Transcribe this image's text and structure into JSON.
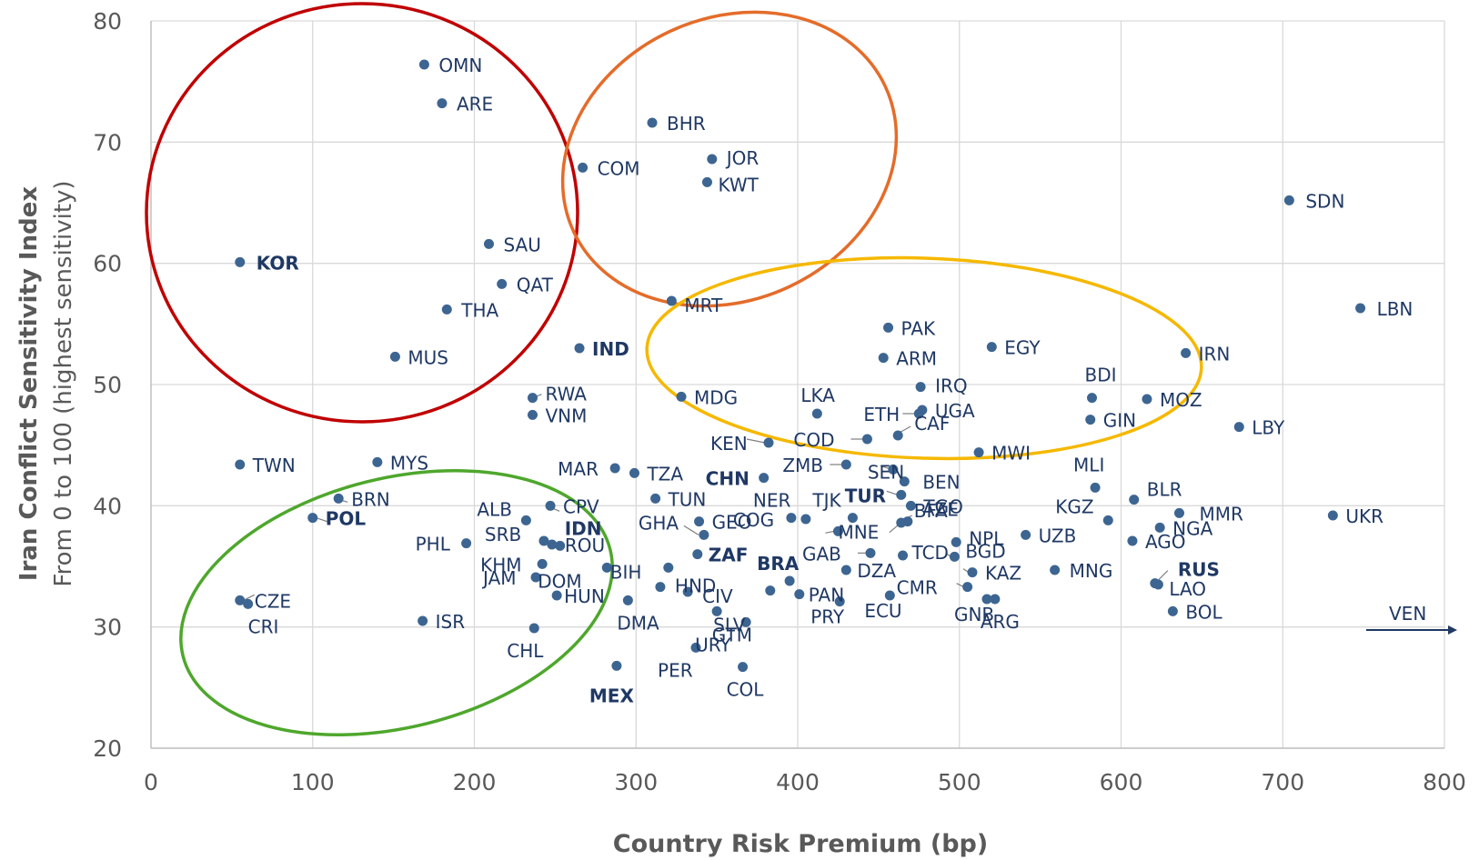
{
  "chart_data": {
    "type": "scatter",
    "title": "",
    "xlabel": "Country Risk Premium (bp)",
    "ylabel": "Iran Conflict Sensitivity Index",
    "ylabel_sub": "From 0 to 100 (highest sensitivity)",
    "xlim": [
      0,
      800
    ],
    "ylim": [
      20,
      80
    ],
    "xticks": [
      0,
      100,
      200,
      300,
      400,
      500,
      600,
      700,
      800
    ],
    "yticks": [
      20,
      30,
      40,
      50,
      60,
      70,
      80
    ],
    "grid": true,
    "marker_color": "#3d6591",
    "label_color": "#1f3864",
    "points": [
      {
        "name": "OMN",
        "x": 169,
        "y": 76.4
      },
      {
        "name": "ARE",
        "x": 180,
        "y": 73.2
      },
      {
        "name": "BHR",
        "x": 310,
        "y": 71.6
      },
      {
        "name": "JOR",
        "x": 347,
        "y": 68.6
      },
      {
        "name": "COM",
        "x": 267,
        "y": 67.9
      },
      {
        "name": "KWT",
        "x": 344,
        "y": 66.7
      },
      {
        "name": "SDN",
        "x": 704,
        "y": 65.2
      },
      {
        "name": "SAU",
        "x": 209,
        "y": 61.6
      },
      {
        "name": "KOR",
        "x": 55,
        "y": 60.1,
        "bold": true
      },
      {
        "name": "QAT",
        "x": 217,
        "y": 58.3
      },
      {
        "name": "MRT",
        "x": 322,
        "y": 56.9
      },
      {
        "name": "LBN",
        "x": 748,
        "y": 56.3
      },
      {
        "name": "THA",
        "x": 183,
        "y": 56.2
      },
      {
        "name": "PAK",
        "x": 456,
        "y": 54.7
      },
      {
        "name": "EGY",
        "x": 520,
        "y": 53.1
      },
      {
        "name": "IND",
        "x": 265,
        "y": 53.0,
        "bold": true
      },
      {
        "name": "IRN",
        "x": 640,
        "y": 52.6
      },
      {
        "name": "MUS",
        "x": 151,
        "y": 52.3
      },
      {
        "name": "ARM",
        "x": 453,
        "y": 52.2
      },
      {
        "name": "IRQ",
        "x": 476,
        "y": 49.8
      },
      {
        "name": "MDG",
        "x": 328,
        "y": 49.0
      },
      {
        "name": "BDI",
        "x": 582,
        "y": 48.9
      },
      {
        "name": "RWA",
        "x": 236,
        "y": 48.9
      },
      {
        "name": "MOZ",
        "x": 616,
        "y": 48.8
      },
      {
        "name": "UGA",
        "x": 477,
        "y": 47.9
      },
      {
        "name": "LKA",
        "x": 412,
        "y": 47.6
      },
      {
        "name": "ETH",
        "x": 475,
        "y": 47.6
      },
      {
        "name": "VNM",
        "x": 236,
        "y": 47.5
      },
      {
        "name": "GIN",
        "x": 581,
        "y": 47.1
      },
      {
        "name": "LBY",
        "x": 673,
        "y": 46.5
      },
      {
        "name": "CAF",
        "x": 462,
        "y": 45.8
      },
      {
        "name": "COD",
        "x": 443,
        "y": 45.5
      },
      {
        "name": "KEN",
        "x": 382,
        "y": 45.2
      },
      {
        "name": "MWI",
        "x": 512,
        "y": 44.4
      },
      {
        "name": "TWN",
        "x": 55,
        "y": 43.4
      },
      {
        "name": "MYS",
        "x": 140,
        "y": 43.6
      },
      {
        "name": "ZMB",
        "x": 430,
        "y": 43.4
      },
      {
        "name": "MAR",
        "x": 287,
        "y": 43.1
      },
      {
        "name": "TZA",
        "x": 299,
        "y": 42.7
      },
      {
        "name": "CHN",
        "x": 379,
        "y": 42.3,
        "bold": true
      },
      {
        "name": "SEN",
        "x": 459,
        "y": 43.0
      },
      {
        "name": "BEN",
        "x": 466,
        "y": 42.0
      },
      {
        "name": "MLI",
        "x": 584,
        "y": 41.5
      },
      {
        "name": "TUR",
        "x": 464,
        "y": 40.9,
        "bold": true
      },
      {
        "name": "BRN",
        "x": 116,
        "y": 40.6
      },
      {
        "name": "TUN",
        "x": 312,
        "y": 40.6
      },
      {
        "name": "BLR",
        "x": 608,
        "y": 40.5
      },
      {
        "name": "TGO",
        "x": 470,
        "y": 40.0
      },
      {
        "name": "NER",
        "x": 396,
        "y": 39.0
      },
      {
        "name": "TJK",
        "x": 434,
        "y": 39.0
      },
      {
        "name": "CPV",
        "x": 247,
        "y": 40.0
      },
      {
        "name": "MMR",
        "x": 636,
        "y": 39.4
      },
      {
        "name": "UKR",
        "x": 731,
        "y": 39.2
      },
      {
        "name": "POL",
        "x": 100,
        "y": 39.0,
        "bold": true
      },
      {
        "name": "ALB",
        "x": 232,
        "y": 38.8
      },
      {
        "name": "GEO",
        "x": 339,
        "y": 38.7
      },
      {
        "name": "KGZ",
        "x": 592,
        "y": 38.8
      },
      {
        "name": "AZE",
        "x": 468,
        "y": 38.7
      },
      {
        "name": "BFA",
        "x": 464,
        "y": 38.6
      },
      {
        "name": "NGA",
        "x": 624,
        "y": 38.2
      },
      {
        "name": "GHA",
        "x": 342,
        "y": 37.6
      },
      {
        "name": "COG",
        "x": 405,
        "y": 38.9
      },
      {
        "name": "MNE",
        "x": 425,
        "y": 37.9
      },
      {
        "name": "UZB",
        "x": 541,
        "y": 37.6
      },
      {
        "name": "NPL",
        "x": 498,
        "y": 37.0
      },
      {
        "name": "PHL",
        "x": 195,
        "y": 36.9
      },
      {
        "name": "SRB",
        "x": 243,
        "y": 37.1
      },
      {
        "name": "IDN",
        "x": 253,
        "y": 36.7,
        "bold": true
      },
      {
        "name": "ROU",
        "x": 248,
        "y": 36.8
      },
      {
        "name": "AGO",
        "x": 607,
        "y": 37.1
      },
      {
        "name": "TCD",
        "x": 465,
        "y": 35.9
      },
      {
        "name": "BIH",
        "x": 320,
        "y": 34.9
      },
      {
        "name": "ZAF",
        "x": 338,
        "y": 36.0,
        "bold": true
      },
      {
        "name": "GAB",
        "x": 445,
        "y": 36.1
      },
      {
        "name": "BGD",
        "x": 497,
        "y": 35.8
      },
      {
        "name": "KHM",
        "x": 242,
        "y": 35.2
      },
      {
        "name": "DZA",
        "x": 430,
        "y": 34.7
      },
      {
        "name": "MNG",
        "x": 559,
        "y": 34.7
      },
      {
        "name": "RUS",
        "x": 621,
        "y": 33.6,
        "bold": true
      },
      {
        "name": "BRA",
        "x": 395,
        "y": 33.8,
        "bold": true
      },
      {
        "name": "KAZ",
        "x": 508,
        "y": 34.5
      },
      {
        "name": "JAM",
        "x": 238,
        "y": 34.1
      },
      {
        "name": "HND",
        "x": 315,
        "y": 33.3
      },
      {
        "name": "PAN",
        "x": 401,
        "y": 32.7
      },
      {
        "name": "CMR",
        "x": 505,
        "y": 33.3
      },
      {
        "name": "CZE",
        "x": 55,
        "y": 32.2
      },
      {
        "name": "LAO",
        "x": 623,
        "y": 33.5
      },
      {
        "name": "HUN",
        "x": 251,
        "y": 32.6
      },
      {
        "name": "CIV",
        "x": 332,
        "y": 32.9
      },
      {
        "name": "DMA",
        "x": 295,
        "y": 32.2
      },
      {
        "name": "PRY",
        "x": 426,
        "y": 32.1
      },
      {
        "name": "ECU",
        "x": 457,
        "y": 32.6
      },
      {
        "name": "GNB",
        "x": 517,
        "y": 32.3
      },
      {
        "name": "ARG",
        "x": 522,
        "y": 32.3
      },
      {
        "name": "CRI",
        "x": 60,
        "y": 31.9
      },
      {
        "name": "BOL",
        "x": 632,
        "y": 31.3
      },
      {
        "name": "DOM",
        "x": 282,
        "y": 34.9
      },
      {
        "name": "SLV",
        "x": 350,
        "y": 31.3
      },
      {
        "name": "URY",
        "x": 368,
        "y": 30.4
      },
      {
        "name": "ISR",
        "x": 168,
        "y": 30.5
      },
      {
        "name": "CHL",
        "x": 237,
        "y": 29.9
      },
      {
        "name": "GTM",
        "x": 383,
        "y": 33.0
      },
      {
        "name": "PER",
        "x": 337,
        "y": 28.3
      },
      {
        "name": "MEX",
        "x": 288,
        "y": 26.8,
        "bold": true
      },
      {
        "name": "COL",
        "x": 366,
        "y": 26.7
      },
      {
        "name": "VEN",
        "x": 800,
        "y": 30.0,
        "offscale": true
      }
    ]
  }
}
